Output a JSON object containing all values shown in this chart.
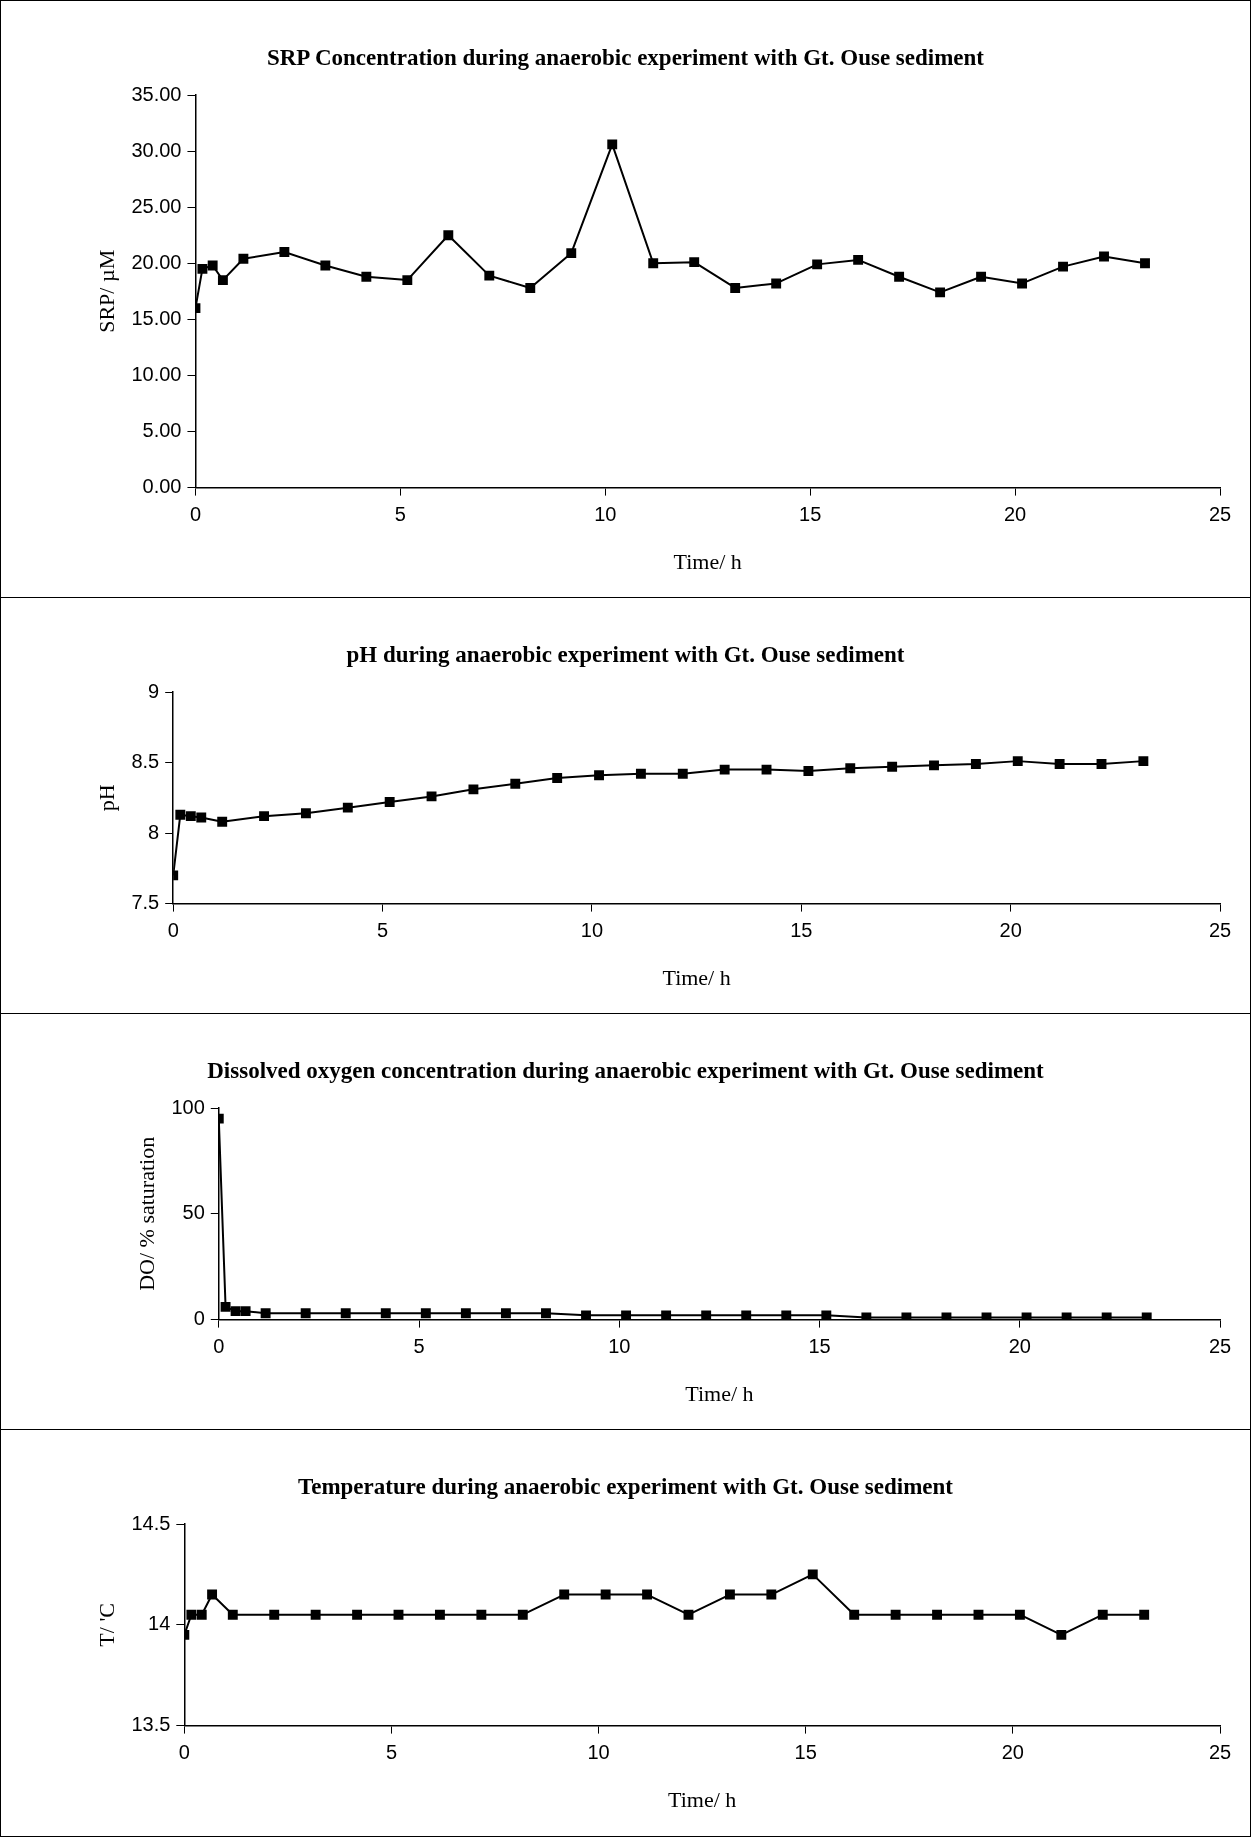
{
  "chart_data": [
    {
      "type": "line",
      "title": "SRP Concentration during anaerobic experiment with Gt. Ouse sediment",
      "xlabel": "Time/ h",
      "ylabel": "SRP/ µM",
      "color": "#000000",
      "marker": "square",
      "x": [
        0,
        0.17,
        0.42,
        0.67,
        1.17,
        2.17,
        3.17,
        4.17,
        5.17,
        6.17,
        7.17,
        8.17,
        9.17,
        10.17,
        11.17,
        12.17,
        13.17,
        14.17,
        15.17,
        16.17,
        17.17,
        18.17,
        19.17,
        20.17,
        21.17,
        22.17,
        23.17
      ],
      "values": [
        16.0,
        19.5,
        19.8,
        18.5,
        20.4,
        21.0,
        19.8,
        18.8,
        18.5,
        22.5,
        18.9,
        17.8,
        20.9,
        30.6,
        20.0,
        20.1,
        17.8,
        18.2,
        19.9,
        20.3,
        18.8,
        17.4,
        18.8,
        18.2,
        19.7,
        20.6,
        20.0
      ],
      "xlim": [
        0,
        25
      ],
      "xticks": [
        0,
        5,
        10,
        15,
        20,
        25
      ],
      "ylim": [
        0,
        35
      ],
      "yticks": [
        {
          "value": 0,
          "label": "0.00"
        },
        {
          "value": 5,
          "label": "5.00"
        },
        {
          "value": 10,
          "label": "10.00"
        },
        {
          "value": 15,
          "label": "15.00"
        },
        {
          "value": 20,
          "label": "20.00"
        },
        {
          "value": 25,
          "label": "25.00"
        },
        {
          "value": 30,
          "label": "30.00"
        },
        {
          "value": 35,
          "label": "35.00"
        }
      ]
    },
    {
      "type": "line",
      "title": "pH during anaerobic experiment with Gt. Ouse sediment",
      "xlabel": "Time/ h",
      "ylabel": "pH",
      "color": "#000000",
      "marker": "square",
      "x": [
        0,
        0.17,
        0.42,
        0.67,
        1.17,
        2.17,
        3.17,
        4.17,
        5.17,
        6.17,
        7.17,
        8.17,
        9.17,
        10.17,
        11.17,
        12.17,
        13.17,
        14.17,
        15.17,
        16.17,
        17.17,
        18.17,
        19.17,
        20.17,
        21.17,
        22.17,
        23.17
      ],
      "values": [
        7.7,
        8.13,
        8.12,
        8.11,
        8.08,
        8.12,
        8.14,
        8.18,
        8.22,
        8.26,
        8.31,
        8.35,
        8.39,
        8.41,
        8.42,
        8.42,
        8.45,
        8.45,
        8.44,
        8.46,
        8.47,
        8.48,
        8.49,
        8.51,
        8.49,
        8.49,
        8.51
      ],
      "xlim": [
        0,
        25
      ],
      "xticks": [
        0,
        5,
        10,
        15,
        20,
        25
      ],
      "ylim": [
        7.5,
        9
      ],
      "yticks": [
        7.5,
        8,
        8.5,
        9
      ]
    },
    {
      "type": "line",
      "title": "Dissolved oxygen concentration during anaerobic experiment with Gt. Ouse sediment",
      "xlabel": "Time/ h",
      "ylabel": "DO/ % saturation",
      "color": "#000000",
      "marker": "square",
      "x": [
        0,
        0.17,
        0.42,
        0.67,
        1.17,
        2.17,
        3.17,
        4.17,
        5.17,
        6.17,
        7.17,
        8.17,
        9.17,
        10.17,
        11.17,
        12.17,
        13.17,
        14.17,
        15.17,
        16.17,
        17.17,
        18.17,
        19.17,
        20.17,
        21.17,
        22.17,
        23.17
      ],
      "values": [
        95,
        6,
        4,
        4,
        3,
        3,
        3,
        3,
        3,
        3,
        3,
        3,
        2,
        2,
        2,
        2,
        2,
        2,
        2,
        1,
        1,
        1,
        1,
        1,
        1,
        1,
        1
      ],
      "xlim": [
        0,
        25
      ],
      "xticks": [
        0,
        5,
        10,
        15,
        20,
        25
      ],
      "ylim": [
        0,
        100
      ],
      "yticks": [
        0,
        50,
        100
      ]
    },
    {
      "type": "line",
      "title": "Temperature during anaerobic experiment with Gt. Ouse sediment",
      "xlabel": "Time/ h",
      "ylabel": "T/ 'C",
      "color": "#000000",
      "marker": "square",
      "x": [
        0,
        0.17,
        0.42,
        0.67,
        1.17,
        2.17,
        3.17,
        4.17,
        5.17,
        6.17,
        7.17,
        8.17,
        9.17,
        10.17,
        11.17,
        12.17,
        13.17,
        14.17,
        15.17,
        16.17,
        17.17,
        18.17,
        19.17,
        20.17,
        21.17,
        22.17,
        23.17
      ],
      "values": [
        13.95,
        14.05,
        14.05,
        14.15,
        14.05,
        14.05,
        14.05,
        14.05,
        14.05,
        14.05,
        14.05,
        14.05,
        14.15,
        14.15,
        14.15,
        14.05,
        14.15,
        14.15,
        14.25,
        14.05,
        14.05,
        14.05,
        14.05,
        14.05,
        13.95,
        14.05,
        14.05
      ],
      "xlim": [
        0,
        25
      ],
      "xticks": [
        0,
        5,
        10,
        15,
        20,
        25
      ],
      "ylim": [
        13.5,
        14.5
      ],
      "yticks": [
        13.5,
        14,
        14.5
      ]
    }
  ]
}
